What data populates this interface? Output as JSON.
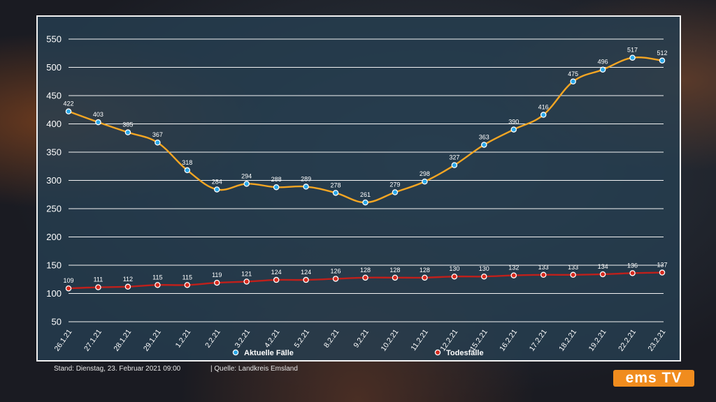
{
  "chart_data": {
    "type": "line",
    "categories": [
      "26.1.21",
      "27.1.21",
      "28.1.21",
      "29.1.21",
      "1.2.21",
      "2.2.21",
      "3.2.21",
      "4.2.21",
      "5.2.21",
      "8.2.21",
      "9.2.21",
      "10.2.21",
      "11.2.21",
      "12.2.21",
      "15.2.21",
      "16.2.21",
      "17.2.21",
      "18.2.21",
      "19.2.21",
      "22.2.21",
      "23.2.21"
    ],
    "series": [
      {
        "name": "Aktuelle Fälle",
        "color": "#f5a623",
        "marker_color": "#2aa8e8",
        "values": [
          422,
          403,
          385,
          367,
          318,
          284,
          294,
          288,
          289,
          278,
          261,
          279,
          298,
          327,
          363,
          390,
          416,
          475,
          496,
          517,
          512
        ]
      },
      {
        "name": "Todesfälle",
        "color": "#c0201b",
        "marker_color": "#d62a1e",
        "values": [
          109,
          111,
          112,
          115,
          115,
          119,
          121,
          124,
          124,
          126,
          128,
          128,
          128,
          130,
          130,
          132,
          133,
          133,
          134,
          136,
          137
        ]
      }
    ],
    "yticks": [
      50,
      100,
      150,
      200,
      250,
      300,
      350,
      400,
      450,
      500,
      550
    ],
    "ylim": [
      50,
      560
    ],
    "grid": true,
    "legend": "bottom"
  },
  "footer": {
    "stand": "Stand:  Dienstag, 23. Februar 2021 09:00",
    "quelle": "| Quelle:    Landkreis Emsland"
  },
  "logo": {
    "text": "ems TV"
  }
}
